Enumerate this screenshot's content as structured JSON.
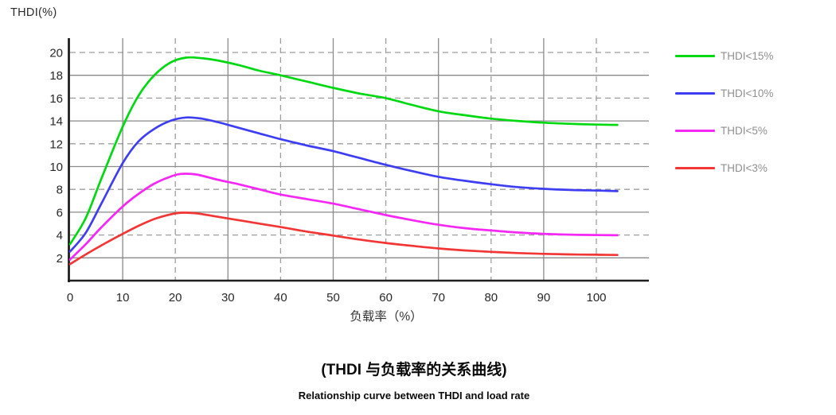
{
  "figure": {
    "y_axis_corner_label": "THDI(%)",
    "captions": {
      "title_zh": "(THDI 与负载率的关系曲线)",
      "subtitle_en": "Relationship curve between THDI and load rate"
    }
  },
  "chart_data": {
    "type": "line",
    "title": "(THDI 与负载率的关系曲线)",
    "subtitle": "Relationship curve between THDI and load rate",
    "xlabel": "负载率（%）",
    "ylabel": "THDI(%)",
    "xlim": [
      0,
      110
    ],
    "ylim": [
      0,
      21
    ],
    "x_ticks": [
      0,
      10,
      20,
      30,
      40,
      50,
      60,
      70,
      80,
      90,
      100
    ],
    "y_ticks": [
      2,
      4,
      6,
      8,
      10,
      12,
      14,
      16,
      18,
      20
    ],
    "grid": "on, alternating solid and dashed lines",
    "legend_position": "right",
    "style": {
      "grid_solid_color": "#8a8a8a",
      "grid_dashed_color": "#9e9e9e",
      "axis_color": "#1f1f1f",
      "tick_label_color": "#282828",
      "legend_text_color": "#8f8f8f"
    },
    "series": [
      {
        "name": "THDI<15%",
        "color": "#00d912",
        "points": [
          [
            0,
            3.2
          ],
          [
            3,
            5.5
          ],
          [
            6,
            9.0
          ],
          [
            10,
            13.5
          ],
          [
            13,
            16.2
          ],
          [
            16,
            18.0
          ],
          [
            19,
            19.1
          ],
          [
            22,
            19.55
          ],
          [
            25,
            19.5
          ],
          [
            28,
            19.3
          ],
          [
            32,
            18.9
          ],
          [
            36,
            18.4
          ],
          [
            40,
            18.0
          ],
          [
            45,
            17.45
          ],
          [
            50,
            16.9
          ],
          [
            55,
            16.4
          ],
          [
            60,
            16.0
          ],
          [
            65,
            15.4
          ],
          [
            70,
            14.85
          ],
          [
            75,
            14.5
          ],
          [
            80,
            14.2
          ],
          [
            85,
            14.0
          ],
          [
            90,
            13.85
          ],
          [
            95,
            13.75
          ],
          [
            100,
            13.68
          ],
          [
            104,
            13.65
          ]
        ]
      },
      {
        "name": "THDI<10%",
        "color": "#3d3df2",
        "points": [
          [
            0,
            2.55
          ],
          [
            3,
            4.2
          ],
          [
            6,
            6.8
          ],
          [
            10,
            10.3
          ],
          [
            13,
            12.2
          ],
          [
            16,
            13.3
          ],
          [
            19,
            14.0
          ],
          [
            22,
            14.3
          ],
          [
            25,
            14.2
          ],
          [
            28,
            13.9
          ],
          [
            32,
            13.4
          ],
          [
            36,
            12.9
          ],
          [
            40,
            12.4
          ],
          [
            45,
            11.85
          ],
          [
            50,
            11.35
          ],
          [
            55,
            10.75
          ],
          [
            60,
            10.15
          ],
          [
            65,
            9.6
          ],
          [
            70,
            9.1
          ],
          [
            75,
            8.75
          ],
          [
            80,
            8.45
          ],
          [
            85,
            8.2
          ],
          [
            90,
            8.05
          ],
          [
            95,
            7.95
          ],
          [
            100,
            7.9
          ],
          [
            104,
            7.85
          ]
        ]
      },
      {
        "name": "THDI<5%",
        "color": "#f527f5",
        "points": [
          [
            0,
            1.85
          ],
          [
            3,
            3.2
          ],
          [
            6,
            4.7
          ],
          [
            10,
            6.5
          ],
          [
            13,
            7.6
          ],
          [
            16,
            8.5
          ],
          [
            19,
            9.1
          ],
          [
            21,
            9.35
          ],
          [
            24,
            9.3
          ],
          [
            28,
            8.85
          ],
          [
            32,
            8.45
          ],
          [
            36,
            8.0
          ],
          [
            40,
            7.55
          ],
          [
            45,
            7.15
          ],
          [
            50,
            6.75
          ],
          [
            55,
            6.25
          ],
          [
            60,
            5.75
          ],
          [
            65,
            5.3
          ],
          [
            70,
            4.9
          ],
          [
            75,
            4.6
          ],
          [
            80,
            4.4
          ],
          [
            85,
            4.22
          ],
          [
            90,
            4.1
          ],
          [
            95,
            4.03
          ],
          [
            100,
            4.0
          ],
          [
            104,
            3.98
          ]
        ]
      },
      {
        "name": "THDI<3%",
        "color": "#f23535",
        "points": [
          [
            0,
            1.45
          ],
          [
            3,
            2.3
          ],
          [
            6,
            3.1
          ],
          [
            10,
            4.1
          ],
          [
            13,
            4.8
          ],
          [
            16,
            5.4
          ],
          [
            19,
            5.8
          ],
          [
            21,
            5.95
          ],
          [
            24,
            5.9
          ],
          [
            28,
            5.6
          ],
          [
            32,
            5.3
          ],
          [
            36,
            5.0
          ],
          [
            40,
            4.7
          ],
          [
            45,
            4.3
          ],
          [
            50,
            3.95
          ],
          [
            55,
            3.6
          ],
          [
            60,
            3.3
          ],
          [
            65,
            3.05
          ],
          [
            70,
            2.82
          ],
          [
            75,
            2.65
          ],
          [
            80,
            2.52
          ],
          [
            85,
            2.42
          ],
          [
            90,
            2.35
          ],
          [
            95,
            2.3
          ],
          [
            100,
            2.27
          ],
          [
            104,
            2.25
          ]
        ]
      }
    ]
  }
}
